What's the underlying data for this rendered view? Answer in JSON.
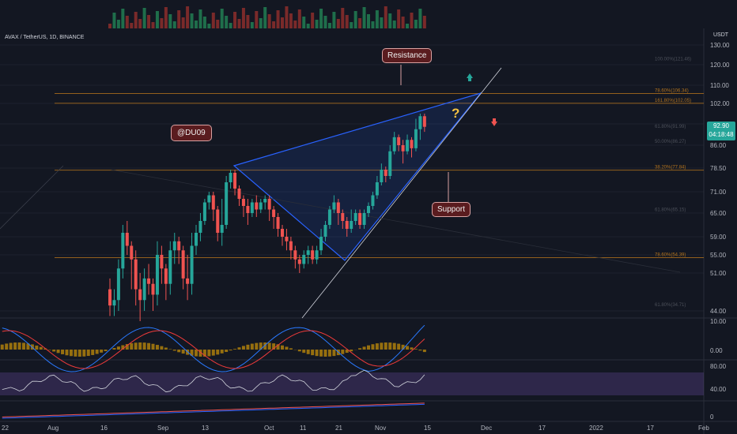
{
  "ticker": "AVAX / TetherUS, 1D, BINANCE",
  "currency": "USDT",
  "current_price": "92.90",
  "countdown": "04:18:48",
  "annotations": {
    "resistance": "Resistance",
    "support": "Support",
    "author": "@DU09",
    "question": "?"
  },
  "colors": {
    "up": "#26a69a",
    "down": "#ef5350",
    "fib": "#b3731d",
    "wedge": "#2962ff",
    "macd_line": "#2979ff",
    "signal_line": "#ef3a3a",
    "rsi_band": "#7e57c2"
  },
  "chart_data": {
    "type": "candlestick",
    "symbol": "AVAX/USDT",
    "interval": "1D",
    "x_ticks": [
      "22",
      "Aug",
      "16",
      "Sep",
      "13",
      "Oct",
      "11",
      "21",
      "Nov",
      "15",
      "Dec",
      "17",
      "2022",
      "17",
      "Feb"
    ],
    "y_ticks": [
      "130.00",
      "120.00",
      "110.00",
      "102.00",
      "94.00",
      "86.00",
      "78.50",
      "71.00",
      "65.00",
      "59.00",
      "55.00",
      "51.00",
      "44.00"
    ],
    "fib_levels": [
      {
        "label": "78.60%(106.34)",
        "value": 106.34
      },
      {
        "label": "161.80%(102.05)",
        "value": 102.05
      },
      {
        "label": "38.20%(77.84)",
        "value": 77.84
      },
      {
        "label": "78.60%(54.39)",
        "value": 54.39
      }
    ],
    "faint_fib_labels": [
      "100.00%(121.46)",
      "61.80%(91.99)",
      "50.00%(86.27)",
      "61.80%(65.15)",
      "61.80%(34.71)"
    ],
    "candles": [
      [
        48,
        45,
        50,
        43
      ],
      [
        45,
        46,
        48,
        43
      ],
      [
        46,
        52,
        54,
        44
      ],
      [
        52,
        60,
        62,
        50
      ],
      [
        60,
        57,
        63,
        55
      ],
      [
        57,
        54,
        58,
        48
      ],
      [
        54,
        48,
        56,
        45
      ],
      [
        48,
        46,
        51,
        42
      ],
      [
        46,
        50,
        52,
        44
      ],
      [
        50,
        49,
        53,
        47
      ],
      [
        49,
        47,
        50,
        44
      ],
      [
        47,
        55,
        58,
        45
      ],
      [
        55,
        52,
        57,
        49
      ],
      [
        52,
        49,
        53,
        46
      ],
      [
        49,
        56,
        58,
        47
      ],
      [
        56,
        58,
        60,
        53
      ],
      [
        58,
        56,
        59,
        53
      ],
      [
        56,
        50,
        57,
        48
      ],
      [
        50,
        49,
        55,
        46
      ],
      [
        49,
        57,
        60,
        47
      ],
      [
        57,
        60,
        62,
        55
      ],
      [
        60,
        63,
        65,
        58
      ],
      [
        63,
        68,
        69,
        62
      ],
      [
        68,
        70,
        71,
        66
      ],
      [
        70,
        66,
        71,
        63
      ],
      [
        66,
        60,
        67,
        58
      ],
      [
        60,
        62,
        69,
        57
      ],
      [
        62,
        74,
        76,
        61
      ],
      [
        74,
        77,
        78,
        72
      ],
      [
        77,
        72,
        78,
        70
      ],
      [
        72,
        69,
        73,
        67
      ],
      [
        69,
        67,
        70,
        64
      ],
      [
        67,
        65,
        69,
        62
      ],
      [
        65,
        68,
        69,
        64
      ],
      [
        68,
        66,
        70,
        64
      ],
      [
        66,
        68,
        69,
        65
      ],
      [
        68,
        69,
        70,
        66
      ],
      [
        69,
        66,
        70,
        63
      ],
      [
        66,
        64,
        67,
        61
      ],
      [
        64,
        61,
        65,
        59
      ],
      [
        61,
        59,
        62,
        57
      ],
      [
        59,
        58,
        61,
        56
      ],
      [
        58,
        56,
        59,
        54
      ],
      [
        56,
        54,
        57,
        52
      ],
      [
        54,
        53,
        55,
        51
      ],
      [
        53,
        55,
        56,
        52
      ],
      [
        55,
        56,
        57,
        53
      ],
      [
        56,
        54,
        57,
        53
      ],
      [
        54,
        56,
        57,
        53
      ],
      [
        56,
        59,
        61,
        55
      ],
      [
        59,
        62,
        63,
        58
      ],
      [
        62,
        66,
        67,
        61
      ],
      [
        66,
        68,
        70,
        65
      ],
      [
        68,
        65,
        69,
        62
      ],
      [
        65,
        63,
        66,
        61
      ],
      [
        63,
        61,
        64,
        59
      ],
      [
        61,
        63,
        66,
        60
      ],
      [
        63,
        65,
        66,
        62
      ],
      [
        65,
        62,
        66,
        61
      ],
      [
        62,
        65,
        66,
        61
      ],
      [
        65,
        67,
        68,
        64
      ],
      [
        67,
        70,
        71,
        66
      ],
      [
        70,
        74,
        76,
        69
      ],
      [
        74,
        78,
        80,
        73
      ],
      [
        78,
        76,
        79,
        74
      ],
      [
        76,
        84,
        86,
        75
      ],
      [
        84,
        89,
        91,
        83
      ],
      [
        89,
        86,
        90,
        84
      ],
      [
        86,
        84,
        88,
        80
      ],
      [
        84,
        88,
        90,
        83
      ],
      [
        88,
        85,
        89,
        82
      ],
      [
        85,
        92,
        96,
        84
      ],
      [
        92,
        97,
        98,
        88
      ],
      [
        97,
        92.9,
        98,
        91
      ]
    ],
    "indicators": {
      "macd_axis": [
        "10.00",
        "0.00"
      ],
      "rsi_axis": [
        "80.00",
        "40.00"
      ],
      "bottom_axis": [
        "0"
      ]
    }
  }
}
